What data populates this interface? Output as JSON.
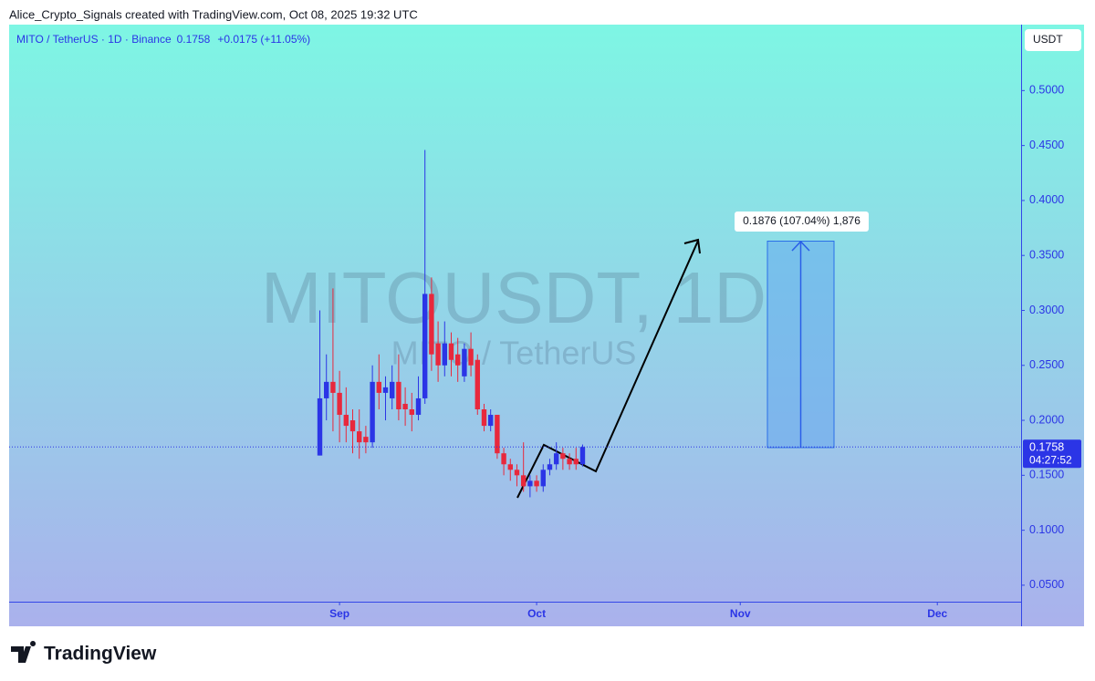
{
  "header": "Alice_Crypto_Signals created with TradingView.com, Oct 08, 2025 19:32 UTC",
  "chart_data": {
    "type": "candlestick",
    "symbol": "MITO / TetherUS · 1D · Binance",
    "last_price": 0.1758,
    "change": "+0.0175 (+11.05%)",
    "countdown": "04:27:52",
    "watermark": "MITOUSDT, 1D",
    "watermark_subtitle": "MITO / TetherUS",
    "currency": "USDT",
    "measure_label": "0.1876 (107.04%) 1,876",
    "up_color": "#2b35e6",
    "down_color": "#e8283c",
    "x": [
      241,
      242,
      243,
      244,
      245,
      246,
      247,
      248,
      249,
      250,
      251,
      252,
      253,
      254,
      255,
      256,
      257,
      258,
      259,
      260,
      261,
      262,
      263,
      264,
      265,
      266,
      267,
      268,
      269,
      270,
      271,
      272,
      273,
      274,
      275,
      276,
      277,
      278,
      279,
      280,
      281
    ],
    "open": [
      0.168,
      0.22,
      0.235,
      0.225,
      0.205,
      0.2,
      0.19,
      0.185,
      0.18,
      0.235,
      0.225,
      0.22,
      0.235,
      0.215,
      0.21,
      0.205,
      0.22,
      0.315,
      0.27,
      0.25,
      0.27,
      0.26,
      0.24,
      0.265,
      0.255,
      0.21,
      0.195,
      0.205,
      0.17,
      0.16,
      0.155,
      0.15,
      0.14,
      0.145,
      0.14,
      0.155,
      0.16,
      0.17,
      0.165,
      0.165,
      0.16
    ],
    "high": [
      0.3,
      0.26,
      0.32,
      0.245,
      0.23,
      0.21,
      0.21,
      0.195,
      0.25,
      0.26,
      0.24,
      0.25,
      0.26,
      0.23,
      0.225,
      0.24,
      0.446,
      0.33,
      0.29,
      0.29,
      0.28,
      0.275,
      0.27,
      0.28,
      0.26,
      0.215,
      0.21,
      0.205,
      0.175,
      0.165,
      0.16,
      0.18,
      0.15,
      0.15,
      0.16,
      0.165,
      0.18,
      0.175,
      0.17,
      0.175,
      0.178
    ],
    "low": [
      0.168,
      0.2,
      0.19,
      0.18,
      0.18,
      0.17,
      0.165,
      0.17,
      0.175,
      0.21,
      0.2,
      0.21,
      0.2,
      0.195,
      0.19,
      0.2,
      0.215,
      0.245,
      0.235,
      0.24,
      0.24,
      0.235,
      0.235,
      0.24,
      0.205,
      0.19,
      0.19,
      0.165,
      0.15,
      0.145,
      0.14,
      0.135,
      0.13,
      0.135,
      0.135,
      0.15,
      0.155,
      0.155,
      0.155,
      0.155,
      0.158
    ],
    "close": [
      0.22,
      0.235,
      0.225,
      0.205,
      0.195,
      0.19,
      0.18,
      0.18,
      0.235,
      0.225,
      0.23,
      0.235,
      0.21,
      0.21,
      0.205,
      0.22,
      0.315,
      0.26,
      0.25,
      0.27,
      0.255,
      0.25,
      0.265,
      0.25,
      0.21,
      0.195,
      0.205,
      0.17,
      0.16,
      0.155,
      0.15,
      0.14,
      0.145,
      0.14,
      0.155,
      0.16,
      0.17,
      0.165,
      0.16,
      0.16,
      0.1758
    ],
    "xlim": [
      193.7,
      347.75
    ],
    "xticks": [
      {
        "value": 244,
        "label": "Sep"
      },
      {
        "value": 274,
        "label": "Oct"
      },
      {
        "value": 305,
        "label": "Nov"
      },
      {
        "value": 335,
        "label": "Dec"
      }
    ],
    "ylim": [
      0.035,
      0.56
    ],
    "yticks": [
      {
        "value": 0.05,
        "label": "0.0500"
      },
      {
        "value": 0.1,
        "label": "0.1000"
      },
      {
        "value": 0.15,
        "label": "0.1500"
      },
      {
        "value": 0.2,
        "label": "0.2000"
      },
      {
        "value": 0.25,
        "label": "0.2500"
      },
      {
        "value": 0.3,
        "label": "0.3000"
      },
      {
        "value": 0.35,
        "label": "0.3500"
      },
      {
        "value": 0.4,
        "label": "0.4000"
      },
      {
        "value": 0.45,
        "label": "0.4500"
      },
      {
        "value": 0.5,
        "label": "0.5000"
      }
    ]
  },
  "footer": "TradingView"
}
